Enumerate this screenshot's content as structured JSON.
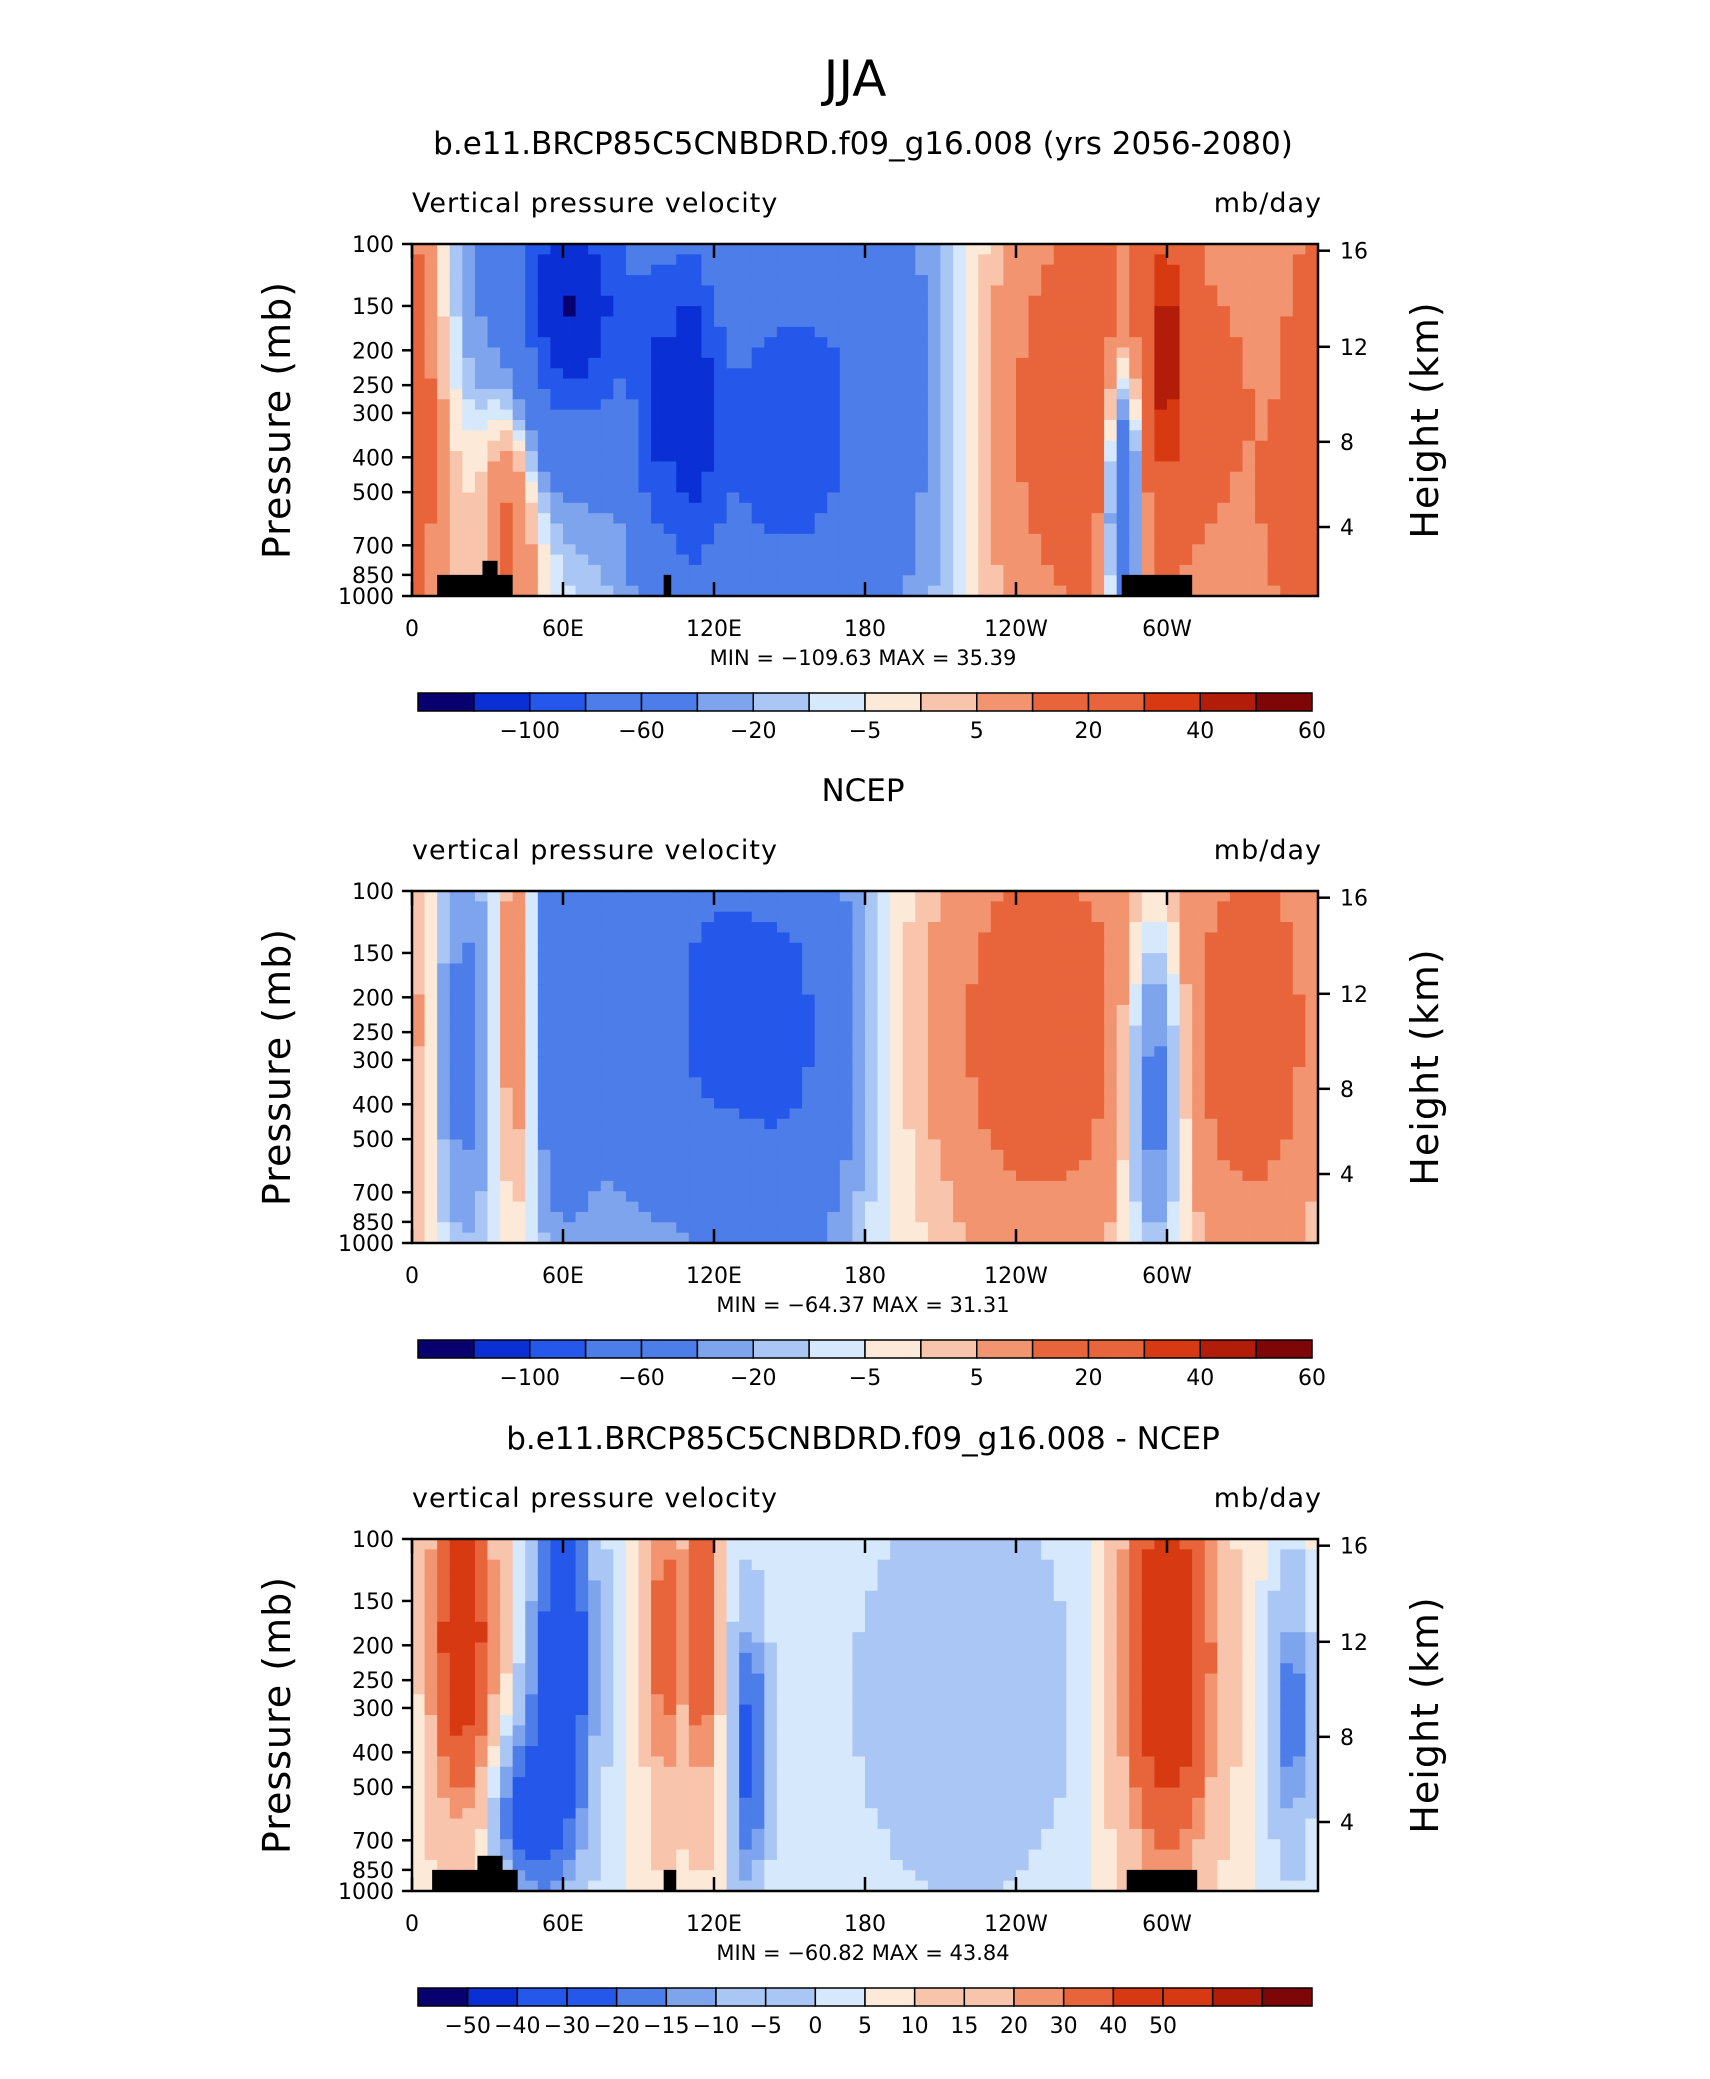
{
  "figure": {
    "season": "JJA"
  },
  "colors": {
    "palette": [
      "#08006e",
      "#0a2fd4",
      "#2558ea",
      "#4d7de8",
      "#7ea4ee",
      "#aac6f4",
      "#d6e8fb",
      "#fde9d7",
      "#f9c4ac",
      "#f1946f",
      "#e8653c",
      "#d73a12",
      "#b11d08",
      "#7e0606"
    ]
  },
  "chart_data": [
    {
      "type": "heatmap",
      "title": "b.e11.BRCP85C5CNBDRD.f09_g16.008 (yrs 2056-2080)",
      "left_label": "Vertical pressure velocity",
      "right_label": "mb/day",
      "ylabel": "Pressure (mb)",
      "y2label": "Height (km)",
      "x_ticks": [
        "0",
        "60E",
        "120E",
        "180",
        "120W",
        "60W"
      ],
      "y_ticks": [
        "100",
        "150",
        "200",
        "250",
        "300",
        "400",
        "500",
        "700",
        "850",
        "1000"
      ],
      "y2_ticks": [
        "16",
        "12",
        "8",
        "4"
      ],
      "min_max_text": "MIN = −109.63   MAX =   35.39",
      "colorbar_labels": [
        "−100",
        "−60",
        "−20",
        "−5",
        "5",
        "20",
        "40",
        "60"
      ],
      "colorbar_label_bounds": [
        2,
        4,
        6,
        8,
        10,
        12,
        14,
        16
      ],
      "levels": [
        -100,
        -80,
        -60,
        -40,
        -20,
        -10,
        -5,
        0,
        5,
        10,
        20,
        30,
        40,
        50,
        60
      ],
      "range": [
        -109.63,
        35.39
      ],
      "blobs": [
        [
          60,
          250,
          -100,
          22,
          0.55
        ],
        [
          150,
          600,
          -70,
          38,
          0.9
        ],
        [
          110,
          500,
          -55,
          8,
          0.7
        ],
        [
          0,
          500,
          20,
          8,
          0.9
        ],
        [
          40,
          600,
          30,
          8,
          0.8
        ],
        [
          185,
          150,
          -10,
          25,
          0.5
        ],
        [
          260,
          550,
          22,
          35,
          1.0
        ],
        [
          320,
          500,
          18,
          50,
          1.0
        ],
        [
          300,
          350,
          30,
          6,
          0.5
        ],
        [
          283,
          750,
          -70,
          5,
          0.5
        ],
        [
          95,
          600,
          -35,
          5,
          0.6
        ],
        [
          350,
          850,
          15,
          8,
          0.3
        ]
      ],
      "masks": [
        [
          10,
          40,
          0.94,
          1.0
        ],
        [
          28,
          34,
          0.9,
          1.0
        ],
        [
          100,
          103,
          0.94,
          1.0
        ],
        [
          282,
          310,
          0.94,
          1.0
        ]
      ]
    },
    {
      "type": "heatmap",
      "title": "NCEP",
      "left_label": "vertical pressure velocity",
      "right_label": "mb/day",
      "ylabel": "Pressure (mb)",
      "y2label": "Height (km)",
      "x_ticks": [
        "0",
        "60E",
        "120E",
        "180",
        "120W",
        "60W"
      ],
      "y_ticks": [
        "100",
        "150",
        "200",
        "250",
        "300",
        "400",
        "500",
        "700",
        "850",
        "1000"
      ],
      "y2_ticks": [
        "16",
        "12",
        "8",
        "4"
      ],
      "min_max_text": "MIN = −64.37   MAX =   31.31",
      "colorbar_labels": [
        "−100",
        "−60",
        "−20",
        "−5",
        "5",
        "20",
        "40",
        "60"
      ],
      "colorbar_label_bounds": [
        2,
        4,
        6,
        8,
        10,
        12,
        14,
        16
      ],
      "levels": [
        -100,
        -80,
        -60,
        -40,
        -20,
        -10,
        -5,
        0,
        5,
        10,
        20,
        30,
        40,
        50,
        60
      ],
      "range": [
        -64.37,
        31.31
      ],
      "blobs": [
        [
          150,
          450,
          -62,
          18,
          0.8
        ],
        [
          100,
          450,
          -40,
          28,
          0.8
        ],
        [
          60,
          400,
          -42,
          8,
          0.7
        ],
        [
          20,
          500,
          -30,
          8,
          0.7
        ],
        [
          42,
          400,
          25,
          6,
          0.7
        ],
        [
          250,
          450,
          30,
          32,
          0.9
        ],
        [
          335,
          450,
          28,
          22,
          0.9
        ],
        [
          295,
          600,
          -40,
          8,
          0.6
        ],
        [
          120,
          350,
          -30,
          12,
          0.6
        ]
      ],
      "masks": []
    },
    {
      "type": "heatmap",
      "title": "b.e11.BRCP85C5CNBDRD.f09_g16.008 - NCEP",
      "left_label": "vertical pressure velocity",
      "right_label": "mb/day",
      "ylabel": "Pressure (mb)",
      "y2label": "Height (km)",
      "x_ticks": [
        "0",
        "60E",
        "120E",
        "180",
        "120W",
        "60W"
      ],
      "y_ticks": [
        "100",
        "150",
        "200",
        "250",
        "300",
        "400",
        "500",
        "700",
        "850",
        "1000"
      ],
      "y2_ticks": [
        "16",
        "12",
        "8",
        "4"
      ],
      "min_max_text": "MIN = −60.82   MAX =   43.84",
      "colorbar_labels": [
        "−50",
        "−40",
        "−30",
        "−20",
        "−15",
        "−10",
        "−5",
        "0",
        "5",
        "10",
        "15",
        "20",
        "30",
        "40",
        "50"
      ],
      "colorbar_label_bounds": [
        1,
        2,
        3,
        4,
        5,
        6,
        7,
        8,
        9,
        10,
        11,
        12,
        13,
        14,
        15
      ],
      "levels": [
        -60,
        -50,
        -40,
        -30,
        -20,
        -15,
        -10,
        -5,
        0,
        5,
        10,
        15,
        20,
        30,
        40,
        50,
        60
      ],
      "range": [
        -60.82,
        43.84
      ],
      "blobs": [
        [
          20,
          350,
          40,
          10,
          0.7
        ],
        [
          300,
          400,
          44,
          14,
          0.8
        ],
        [
          60,
          400,
          -45,
          9,
          0.7
        ],
        [
          100,
          350,
          25,
          5,
          0.7
        ],
        [
          115,
          300,
          30,
          5,
          0.7
        ],
        [
          134,
          650,
          -35,
          5,
          0.5
        ],
        [
          220,
          500,
          -15,
          30,
          0.7
        ],
        [
          350,
          550,
          -25,
          6,
          0.5
        ],
        [
          46,
          800,
          -35,
          10,
          0.3
        ]
      ],
      "masks": [
        [
          8,
          42,
          0.94,
          1.0
        ],
        [
          26,
          36,
          0.9,
          1.0
        ],
        [
          100,
          105,
          0.94,
          1.0
        ],
        [
          284,
          312,
          0.94,
          1.0
        ]
      ]
    }
  ]
}
